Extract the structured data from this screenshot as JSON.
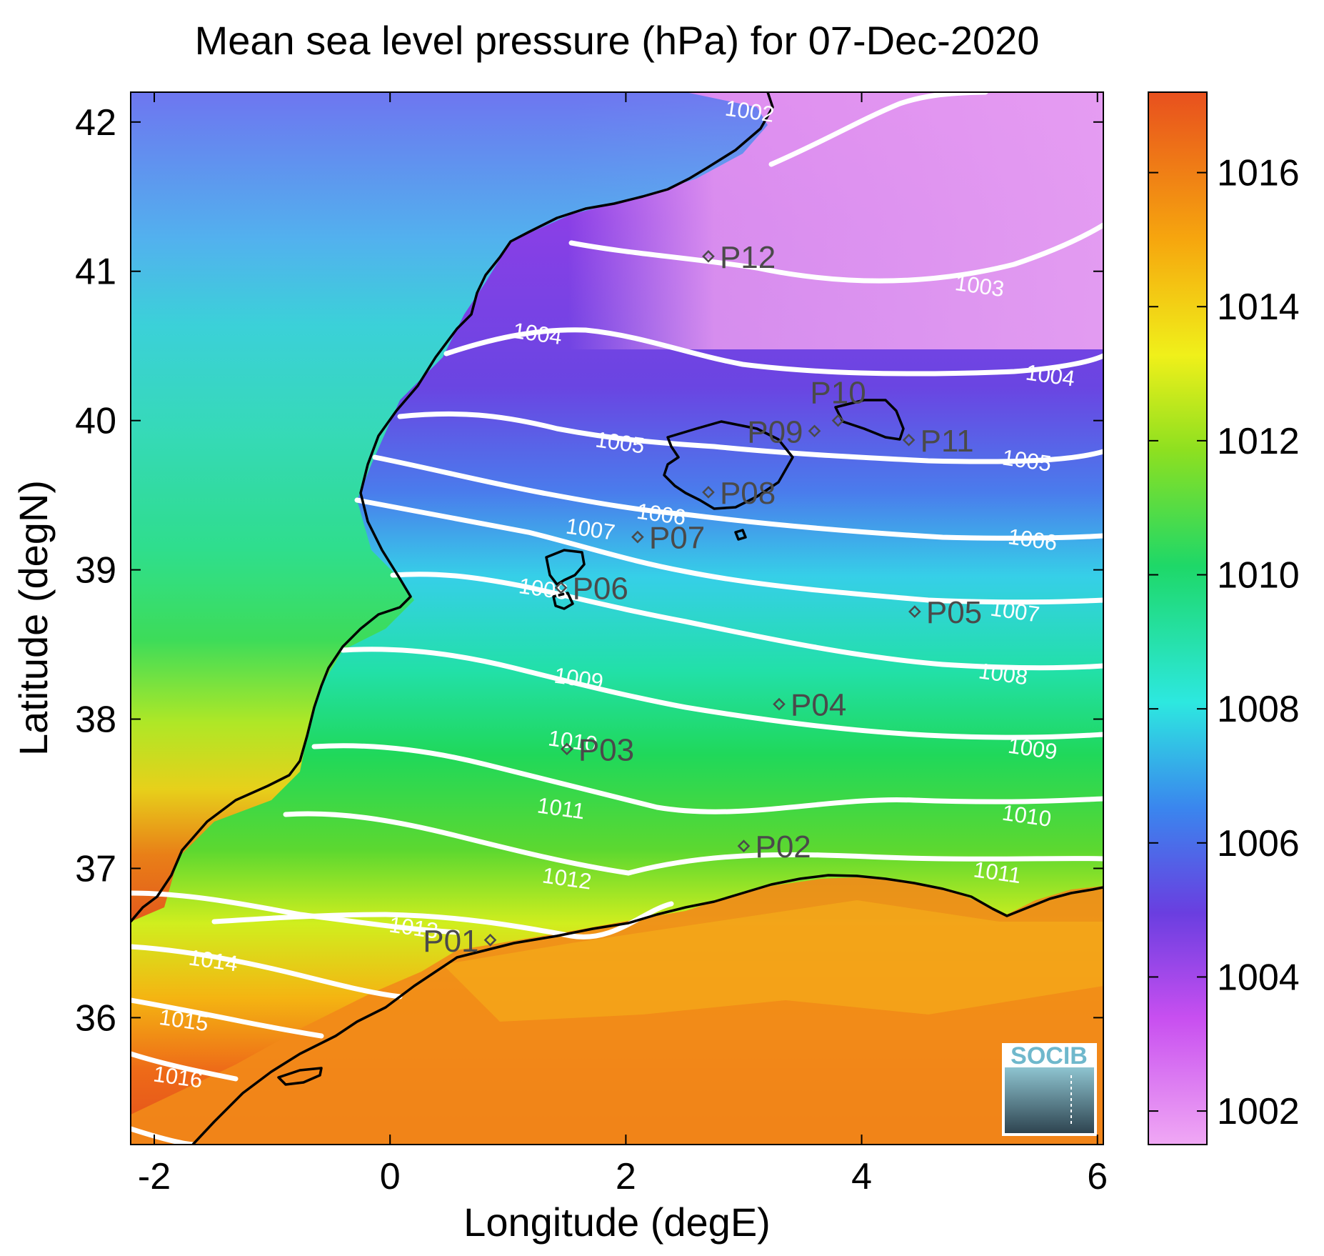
{
  "title": "Mean sea level pressure (hPa) for 07-Dec-2020",
  "xlabel": "Longitude (degE)",
  "ylabel": "Latitude (degN)",
  "xlim": [
    -2.2,
    6.05
  ],
  "ylim": [
    35.15,
    42.2
  ],
  "xticks": [
    -2,
    0,
    2,
    4,
    6
  ],
  "yticks": [
    36,
    37,
    38,
    39,
    40,
    41,
    42
  ],
  "colorbar": {
    "range": [
      1001.5,
      1017.2
    ],
    "ticks": [
      1002,
      1004,
      1006,
      1008,
      1010,
      1012,
      1014,
      1016
    ],
    "colors": [
      "#f0a8f4",
      "#c84ff0",
      "#6a3ee0",
      "#3a86ee",
      "#2de8e0",
      "#1ed868",
      "#8ee020",
      "#f0f01a",
      "#f6a60e",
      "#e8501e"
    ]
  },
  "contour_labels": [
    {
      "text": "1002",
      "lon": 3.05,
      "lat": 42.07
    },
    {
      "text": "1003",
      "lon": 5.0,
      "lat": 40.9
    },
    {
      "text": "1004",
      "lon": 1.25,
      "lat": 40.58
    },
    {
      "text": "1004",
      "lon": 5.6,
      "lat": 40.3
    },
    {
      "text": "1005",
      "lon": 1.95,
      "lat": 39.85
    },
    {
      "text": "1005",
      "lon": 5.4,
      "lat": 39.73
    },
    {
      "text": "1006",
      "lon": 2.3,
      "lat": 39.37
    },
    {
      "text": "1006",
      "lon": 5.45,
      "lat": 39.2
    },
    {
      "text": "1007",
      "lon": 1.7,
      "lat": 39.27
    },
    {
      "text": "1007",
      "lon": 5.3,
      "lat": 38.72
    },
    {
      "text": "1008",
      "lon": 1.3,
      "lat": 38.87
    },
    {
      "text": "1008",
      "lon": 5.2,
      "lat": 38.3
    },
    {
      "text": "1009",
      "lon": 1.6,
      "lat": 38.27
    },
    {
      "text": "1009",
      "lon": 5.45,
      "lat": 37.8
    },
    {
      "text": "1010",
      "lon": 1.55,
      "lat": 37.85
    },
    {
      "text": "1010",
      "lon": 5.4,
      "lat": 37.35
    },
    {
      "text": "1011",
      "lon": 1.45,
      "lat": 37.4
    },
    {
      "text": "1011",
      "lon": 5.15,
      "lat": 36.97
    },
    {
      "text": "1012",
      "lon": 1.5,
      "lat": 36.93
    },
    {
      "text": "1013",
      "lon": 0.2,
      "lat": 36.6
    },
    {
      "text": "1014",
      "lon": -1.5,
      "lat": 36.38
    },
    {
      "text": "1015",
      "lon": -1.75,
      "lat": 35.98
    },
    {
      "text": "1016",
      "lon": -1.8,
      "lat": 35.6
    }
  ],
  "stations": [
    {
      "name": "P01",
      "lon": 0.85,
      "lat": 36.52,
      "label_side": "left"
    },
    {
      "name": "P02",
      "lon": 3.0,
      "lat": 37.15,
      "label_side": "right"
    },
    {
      "name": "P03",
      "lon": 1.5,
      "lat": 37.8,
      "label_side": "right"
    },
    {
      "name": "P04",
      "lon": 3.3,
      "lat": 38.1,
      "label_side": "right"
    },
    {
      "name": "P05",
      "lon": 4.45,
      "lat": 38.72,
      "label_side": "right"
    },
    {
      "name": "P06",
      "lon": 1.45,
      "lat": 38.88,
      "label_side": "right"
    },
    {
      "name": "P07",
      "lon": 2.1,
      "lat": 39.22,
      "label_side": "right"
    },
    {
      "name": "P08",
      "lon": 2.7,
      "lat": 39.52,
      "label_side": "right"
    },
    {
      "name": "P09",
      "lon": 3.6,
      "lat": 39.93,
      "label_side": "left"
    },
    {
      "name": "P10",
      "lon": 3.8,
      "lat": 40.0,
      "label_side": "above"
    },
    {
      "name": "P11",
      "lon": 4.4,
      "lat": 39.87,
      "label_side": "right"
    },
    {
      "name": "P12",
      "lon": 2.7,
      "lat": 41.1,
      "label_side": "right"
    }
  ],
  "logo": {
    "text": "SOCIB"
  }
}
